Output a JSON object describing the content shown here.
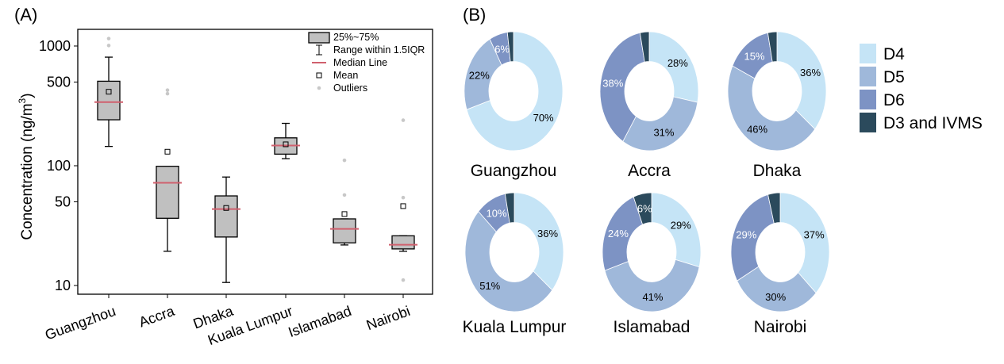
{
  "chart_data": [
    {
      "type": "box",
      "panel_label": "(A)",
      "ylabel_main": "Concentration (ng/m",
      "ylabel_sup": "3",
      "ylabel_close": ")",
      "yscale": "log",
      "ylim": [
        8.6,
        1400
      ],
      "yticks": [
        10,
        50,
        100,
        500,
        1000
      ],
      "ytick_labels": [
        "10",
        "50",
        "100",
        "500",
        "1000"
      ],
      "categories": [
        "Guangzhou",
        "Accra",
        "Dhaka",
        "Kuala Lumpur",
        "Islamabad",
        "Nairobi"
      ],
      "boxes": [
        {
          "whisker_low": 145,
          "q1": 242,
          "median": 340,
          "q3": 508,
          "whisker_high": 807,
          "mean": 415,
          "outliers": [
            1009,
            1153
          ]
        },
        {
          "whisker_low": 19.3,
          "q1": 36.4,
          "median": 72,
          "q3": 99,
          "whisker_high": 99,
          "mean": 131,
          "outliers": [
            400,
            428
          ]
        },
        {
          "whisker_low": 10.6,
          "q1": 25.4,
          "median": 43.5,
          "q3": 56,
          "whisker_high": 80.5,
          "mean": 44.4,
          "outliers": []
        },
        {
          "whisker_low": 114.6,
          "q1": 125,
          "median": 147.5,
          "q3": 171,
          "whisker_high": 226,
          "mean": 151,
          "outliers": []
        },
        {
          "whisker_low": 21.8,
          "q1": 22.7,
          "median": 29.7,
          "q3": 36,
          "whisker_high": 36,
          "mean": 39.5,
          "outliers": [
            57,
            111
          ]
        },
        {
          "whisker_low": 19.3,
          "q1": 20.2,
          "median": 21.9,
          "q3": 26,
          "whisker_high": 26,
          "mean": 46,
          "outliers": [
            11.1,
            54.2,
            240
          ]
        }
      ],
      "legend": {
        "placement": "top-right",
        "items": [
          "25%~75%",
          "Range within 1.5IQR",
          "Median Line",
          "Mean",
          "Outliers"
        ]
      },
      "colors": {
        "box": "#c0c0c0",
        "median": "#d0606e",
        "outlier": "#c8c8c8"
      }
    },
    {
      "type": "pie",
      "panel_label": "(B)",
      "series_names": [
        "D4",
        "D5",
        "D6",
        "D3 and IVMS"
      ],
      "colors": [
        "#c5e4f6",
        "#9fb8da",
        "#7d93c4",
        "#2b4a5c"
      ],
      "label_colors": [
        "#000000",
        "#000000",
        "#ffffff",
        "#ffffff"
      ],
      "legend_placement": "right",
      "pies": [
        {
          "city": "Guangzhou",
          "values": [
            70,
            22,
            6,
            2
          ]
        },
        {
          "city": "Accra",
          "values": [
            28,
            31,
            38,
            3
          ]
        },
        {
          "city": "Dhaka",
          "values": [
            36,
            46,
            15,
            3
          ]
        },
        {
          "city": "Kuala Lumpur",
          "values": [
            36,
            51,
            10,
            3
          ]
        },
        {
          "city": "Islamabad",
          "values": [
            29,
            41,
            24,
            6
          ]
        },
        {
          "city": "Nairobi",
          "values": [
            37,
            30,
            29,
            4
          ]
        }
      ]
    }
  ]
}
